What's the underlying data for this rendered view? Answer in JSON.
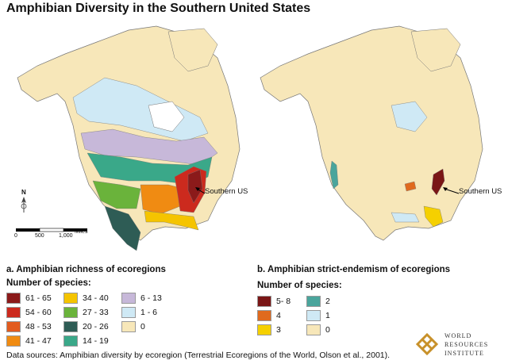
{
  "title": "Amphibian Diversity in the Southern United States",
  "panel_a": {
    "title": "a. Amphibian richness of ecoregions",
    "legend_title": "Number of species:",
    "callout": "Southern US",
    "legend": [
      {
        "label": "61 - 65",
        "color": "#8b1a1a"
      },
      {
        "label": "54 - 60",
        "color": "#cc2a1e"
      },
      {
        "label": "48 - 53",
        "color": "#e25b1e"
      },
      {
        "label": "41 - 47",
        "color": "#f08b12"
      },
      {
        "label": "34 - 40",
        "color": "#f5c400"
      },
      {
        "label": "27 - 33",
        "color": "#6ab33b"
      },
      {
        "label": "20 - 26",
        "color": "#2e5c55"
      },
      {
        "label": "14 - 19",
        "color": "#3aa889"
      },
      {
        "label": "6 - 13",
        "color": "#c7b8d9"
      },
      {
        "label": "1 - 6",
        "color": "#cfe9f5"
      },
      {
        "label": "0",
        "color": "#f7e7b9"
      }
    ]
  },
  "panel_b": {
    "title": "b. Amphibian strict-endemism of ecoregions",
    "legend_title": "Number of species:",
    "callout": "Southern US",
    "legend": [
      {
        "label": "5- 8",
        "color": "#7a1616"
      },
      {
        "label": "4",
        "color": "#e06a1e"
      },
      {
        "label": "3",
        "color": "#f5d000"
      },
      {
        "label": "2",
        "color": "#4aa59c"
      },
      {
        "label": "1",
        "color": "#cfe9f5"
      },
      {
        "label": "0",
        "color": "#f7e7b9"
      }
    ]
  },
  "scale": {
    "ticks": [
      "0",
      "500",
      "1,000"
    ],
    "unit": "Miles"
  },
  "north_label": "N",
  "source": "Data sources:  Amphibian diversity by ecoregion (Terrestrial Ecoregions of the World, Olson et al., 2001).",
  "logo": {
    "lines": [
      "WORLD",
      "RESOURCES",
      "INSTITUTE"
    ],
    "icon": "wri-knot-logo-icon"
  },
  "colors": {
    "land_base": "#f7e7b9",
    "water": "#ffffff",
    "outline": "#777777"
  }
}
